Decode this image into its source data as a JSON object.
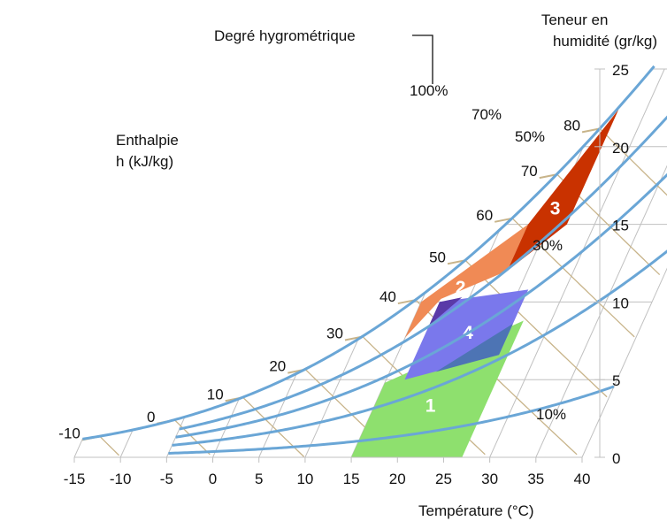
{
  "chart_data": {
    "type": "psychrometric",
    "xlabel": "Température (°C)",
    "x_ticks": [
      -15,
      -10,
      -5,
      0,
      5,
      10,
      15,
      20,
      25,
      30,
      35,
      40
    ],
    "xlim": [
      -15,
      40
    ],
    "ylabel": "Teneur en humidité (gr/kg)",
    "ylabel_lines": [
      "Teneur en",
      "humidité (gr/kg)"
    ],
    "y_ticks": [
      0,
      5,
      10,
      15,
      20,
      25
    ],
    "ylim": [
      0,
      25
    ],
    "enthalpy_label": "Enthalpie h (kJ/kg)",
    "enthalpy_label_lines": [
      "Enthalpie",
      "h (kJ/kg)"
    ],
    "enthalpy_values": [
      -10,
      0,
      10,
      20,
      30,
      40,
      50,
      60,
      70,
      80
    ],
    "rh_title": "Degré hygrométrique",
    "rh_curves": [
      {
        "name": "100%",
        "rh": 1.0,
        "t_start": -15
      },
      {
        "name": "70%",
        "rh": 0.7,
        "t_start": -5
      },
      {
        "name": "50%",
        "rh": 0.5,
        "t_start": -5
      },
      {
        "name": "30%",
        "rh": 0.3,
        "t_start": -5
      },
      {
        "name": "10%",
        "rh": 0.1,
        "t_start": -5
      }
    ],
    "zones": [
      {
        "label": "1",
        "color": "#8ee06e",
        "points": [
          [
            15,
            4.8
          ],
          [
            27,
            8.8
          ],
          [
            27,
            0
          ],
          [
            15,
            0
          ]
        ]
      },
      {
        "label": "2",
        "color": "#f08a55",
        "points": [
          [
            15,
            7.7
          ],
          [
            15,
            10.0
          ],
          [
            22.8,
            15.0
          ],
          [
            22.8,
            12.0
          ],
          [
            17,
            10.2
          ]
        ]
      },
      {
        "label": "3",
        "color": "#c93200",
        "points": [
          [
            22.8,
            12.0
          ],
          [
            22.8,
            15.0
          ],
          [
            27,
            22.4
          ],
          [
            27,
            15.0
          ]
        ]
      },
      {
        "label": "4",
        "color": "#7a78ec",
        "points": [
          [
            17,
            5.0
          ],
          [
            17,
            10.0
          ],
          [
            26,
            10.8
          ],
          [
            26,
            6.6
          ]
        ]
      }
    ],
    "colors": {
      "curve": "#6aa6d6",
      "grid": "#c0c0c0",
      "enthalpy_line": "#c8b48a",
      "overlap_24": "#5a3aa8",
      "overlap_14": "#4d74b4"
    }
  }
}
